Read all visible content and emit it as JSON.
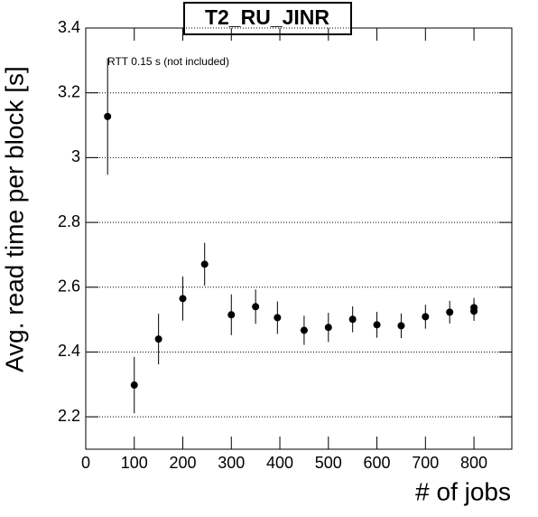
{
  "chart_data": {
    "type": "scatter",
    "title": "T2_RU_JINR",
    "annotation": "RTT 0.15 s (not included)",
    "x_label": "# of jobs",
    "y_label": "Avg. read time per block [s]",
    "series": [
      {
        "name": "T2_RU_JINR",
        "color": "#000000",
        "x": [
          45,
          100,
          150,
          200,
          245,
          300,
          350,
          395,
          450,
          500,
          550,
          600,
          650,
          700,
          750,
          800,
          800
        ],
        "values": [
          3.127,
          2.298,
          2.44,
          2.565,
          2.671,
          2.515,
          2.54,
          2.506,
          2.467,
          2.476,
          2.501,
          2.484,
          2.481,
          2.509,
          2.523,
          2.537,
          2.526
        ],
        "errors": [
          0.18,
          0.087,
          0.078,
          0.068,
          0.066,
          0.063,
          0.053,
          0.05,
          0.045,
          0.045,
          0.04,
          0.04,
          0.038,
          0.037,
          0.035,
          0.03,
          0.03
        ]
      }
    ],
    "xlim": [
      0,
      878
    ],
    "xticks": [
      0,
      100,
      200,
      300,
      400,
      500,
      600,
      700,
      800
    ],
    "ylim": [
      2.1,
      3.4
    ],
    "yticks": [
      2.2,
      2.4,
      2.6,
      2.8,
      3,
      3.2,
      3.4
    ],
    "grid": "y"
  }
}
